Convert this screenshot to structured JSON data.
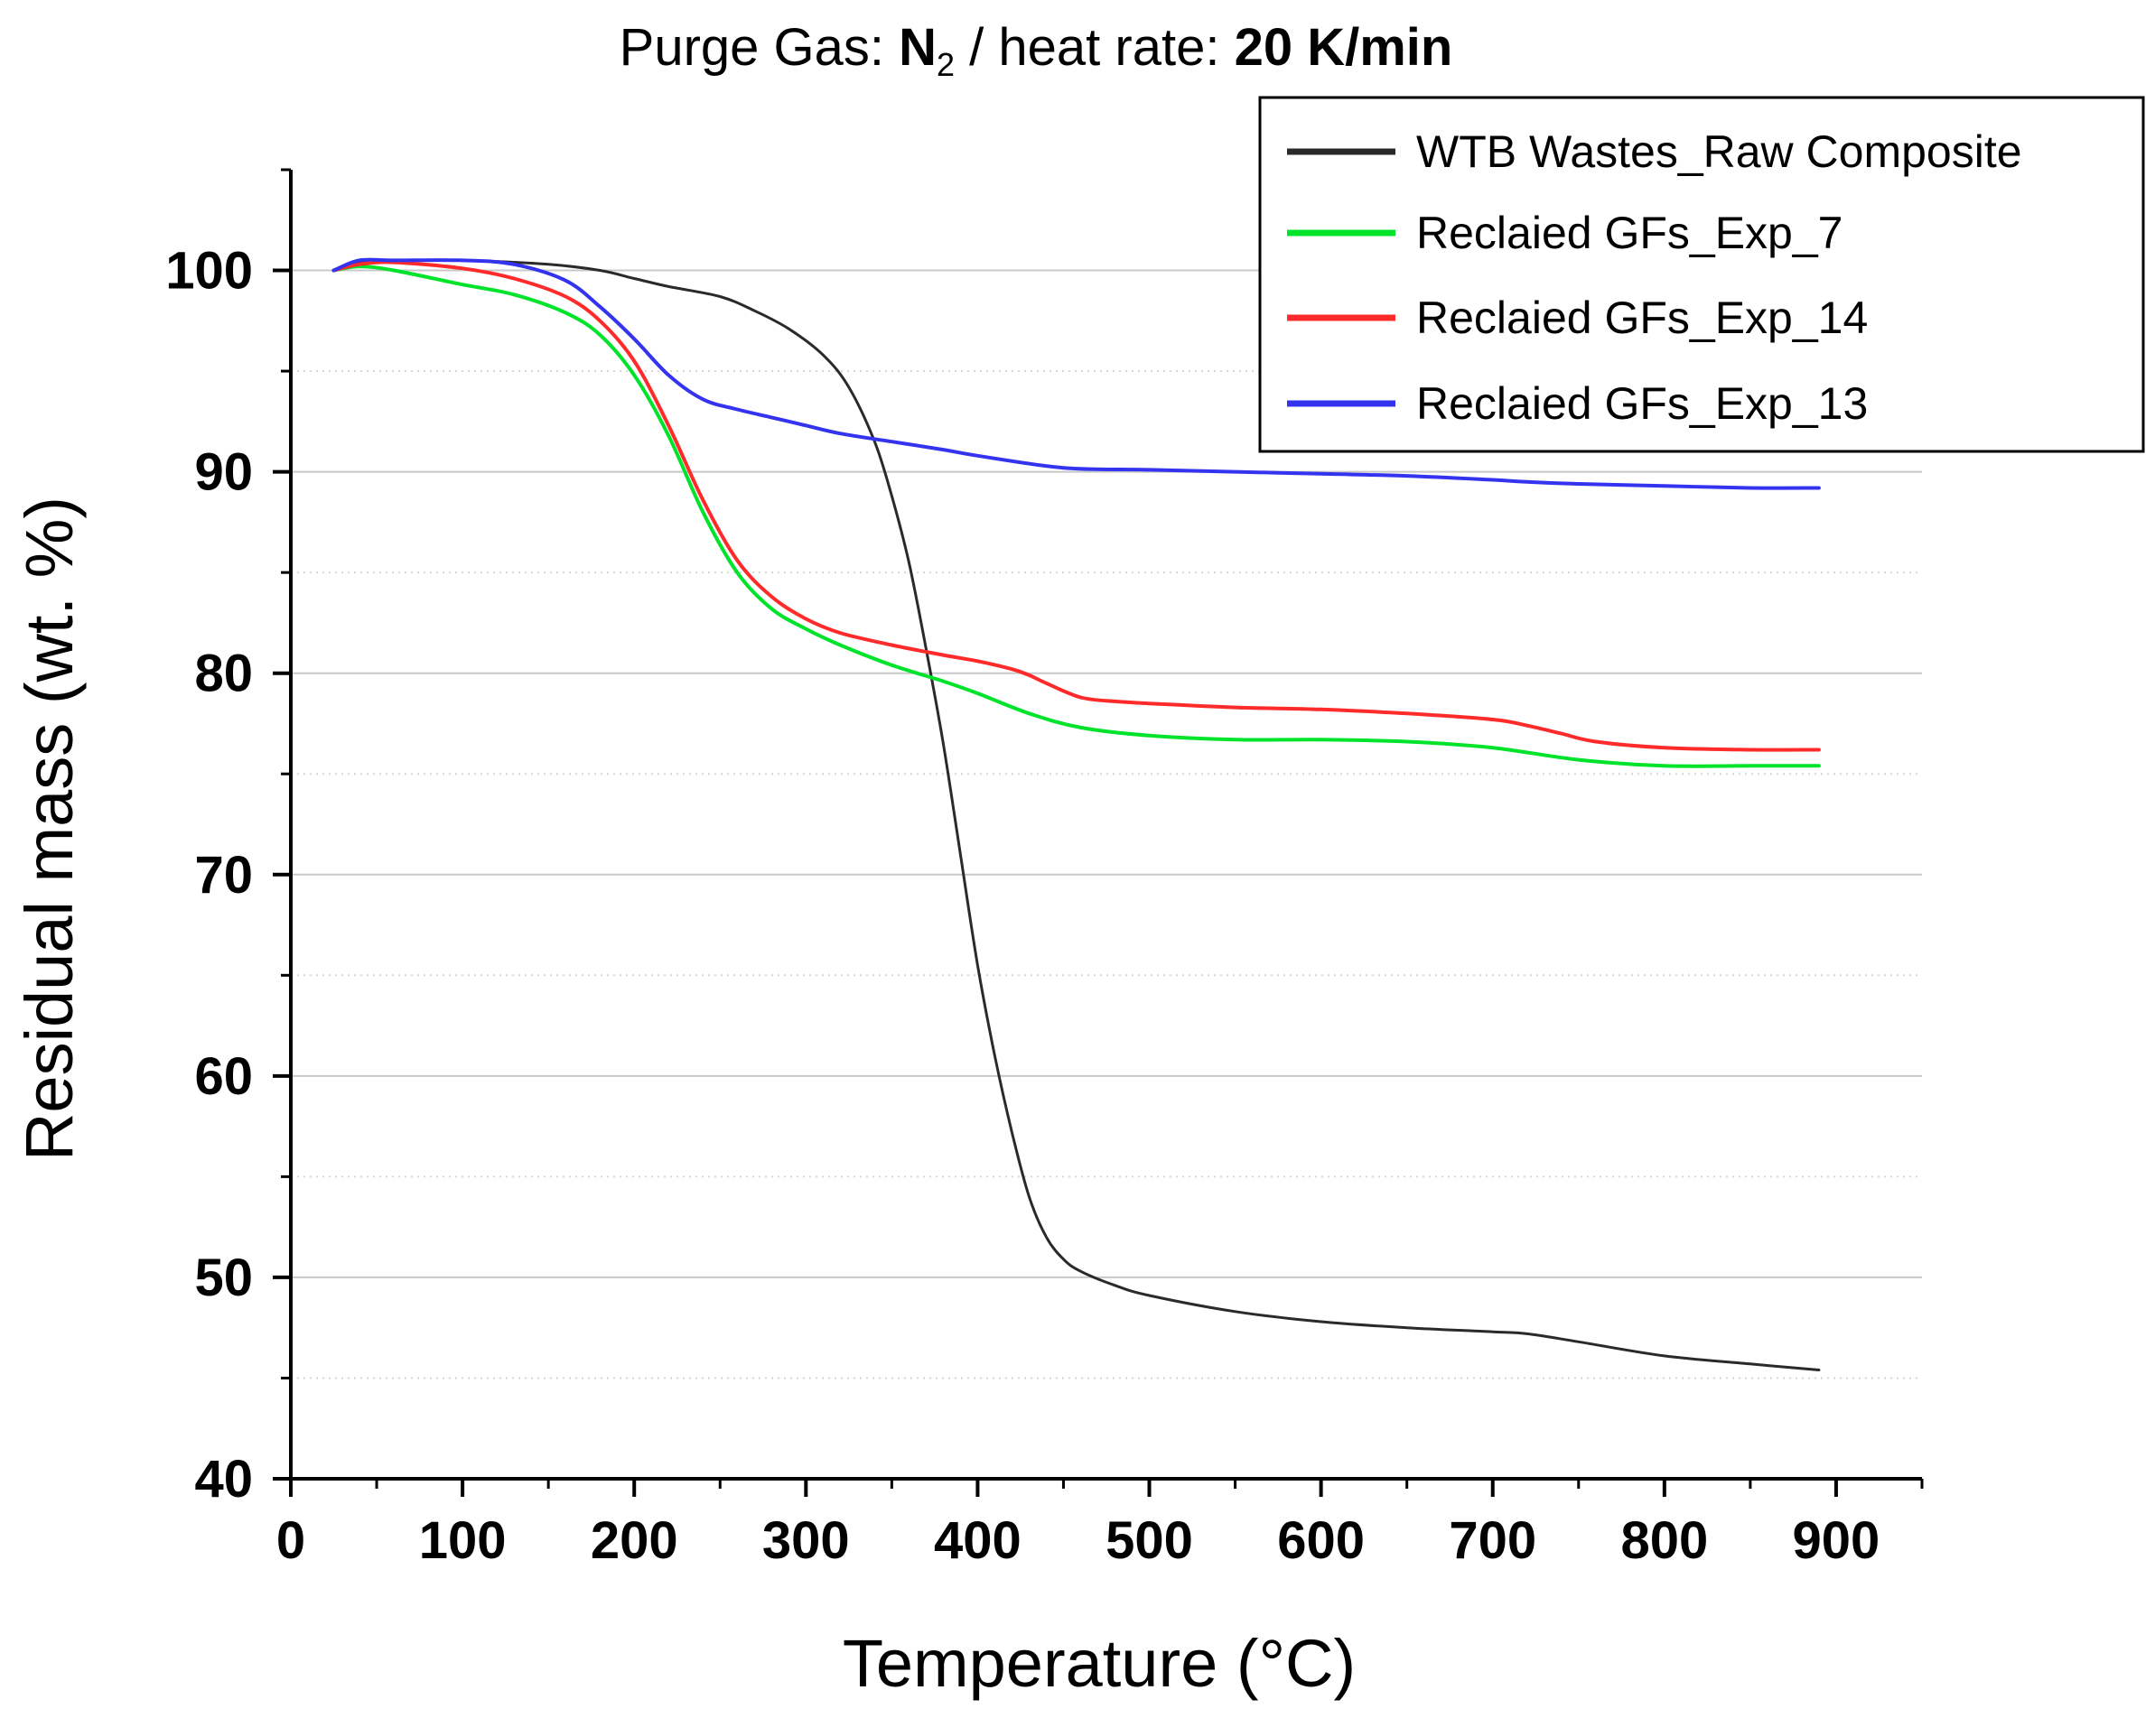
{
  "chart_data": {
    "type": "line",
    "title": {
      "prefix": "Purge Gas: ",
      "gas_main": "N",
      "gas_sub": "2",
      "middle": " / heat rate: ",
      "rate": "20 K/min"
    },
    "xlabel": "Temperature (°C)",
    "ylabel": "Residual mass (wt. %)",
    "xlim": [
      0,
      950
    ],
    "ylim": [
      40,
      105
    ],
    "xticks": [
      "0",
      "100",
      "200",
      "300",
      "400",
      "500",
      "600",
      "700",
      "800",
      "900"
    ],
    "yticks": [
      "40",
      "50",
      "60",
      "70",
      "80",
      "90",
      "100"
    ],
    "grid": true,
    "legend_position": "top-right",
    "series": [
      {
        "name": "WTB Wastes_Raw Composite",
        "color": "#2a2a2a",
        "x": [
          25,
          40,
          60,
          100,
          150,
          180,
          200,
          220,
          250,
          270,
          290,
          310,
          325,
          340,
          350,
          360,
          370,
          380,
          390,
          400,
          410,
          420,
          430,
          440,
          450,
          460,
          480,
          500,
          550,
          600,
          650,
          700,
          720,
          750,
          800,
          850,
          890
        ],
        "y": [
          100,
          100.4,
          100.5,
          100.5,
          100.3,
          100.0,
          99.6,
          99.2,
          98.7,
          98.0,
          97.1,
          95.8,
          94.2,
          91.5,
          88.8,
          85.5,
          81.2,
          76.5,
          71.0,
          65.5,
          61.0,
          57.2,
          54.0,
          52.0,
          50.9,
          50.3,
          49.6,
          49.1,
          48.3,
          47.8,
          47.5,
          47.3,
          47.2,
          46.8,
          46.1,
          45.7,
          45.4
        ]
      },
      {
        "name": "Reclaied GFs_Exp_7",
        "color": "#00e32b",
        "x": [
          25,
          40,
          60,
          100,
          130,
          160,
          180,
          200,
          220,
          240,
          260,
          280,
          300,
          320,
          350,
          380,
          400,
          430,
          460,
          500,
          550,
          600,
          650,
          700,
          750,
          800,
          850,
          890
        ],
        "y": [
          100,
          100.2,
          100.0,
          99.3,
          98.8,
          97.9,
          96.8,
          94.8,
          91.8,
          88.0,
          85.0,
          83.2,
          82.2,
          81.4,
          80.4,
          79.6,
          79.0,
          78.0,
          77.3,
          76.9,
          76.7,
          76.7,
          76.6,
          76.3,
          75.7,
          75.4,
          75.4,
          75.4
        ]
      },
      {
        "name": "Reclaied GFs_Exp_14",
        "color": "#ff2a2a",
        "x": [
          25,
          40,
          60,
          100,
          130,
          160,
          180,
          200,
          220,
          240,
          260,
          280,
          300,
          320,
          350,
          380,
          400,
          420,
          430,
          440,
          460,
          480,
          500,
          550,
          600,
          650,
          700,
          720,
          740,
          760,
          800,
          850,
          890
        ],
        "y": [
          100,
          100.3,
          100.4,
          100.1,
          99.6,
          98.7,
          97.5,
          95.5,
          92.3,
          88.6,
          85.6,
          83.8,
          82.7,
          82.0,
          81.4,
          80.9,
          80.6,
          80.2,
          79.9,
          79.5,
          78.8,
          78.6,
          78.5,
          78.3,
          78.2,
          78.0,
          77.7,
          77.4,
          77.0,
          76.6,
          76.3,
          76.2,
          76.2
        ]
      },
      {
        "name": "Reclaied GFs_Exp_13",
        "color": "#3434f0",
        "x": [
          25,
          40,
          60,
          100,
          130,
          160,
          180,
          200,
          220,
          240,
          260,
          280,
          300,
          320,
          350,
          380,
          400,
          450,
          500,
          550,
          600,
          650,
          700,
          720,
          750,
          800,
          850,
          890
        ],
        "y": [
          100,
          100.5,
          100.5,
          100.5,
          100.3,
          99.5,
          98.2,
          96.6,
          94.8,
          93.6,
          93.1,
          92.7,
          92.3,
          91.9,
          91.5,
          91.1,
          90.8,
          90.2,
          90.1,
          90.0,
          89.9,
          89.8,
          89.6,
          89.5,
          89.4,
          89.3,
          89.2,
          89.2
        ]
      }
    ]
  }
}
